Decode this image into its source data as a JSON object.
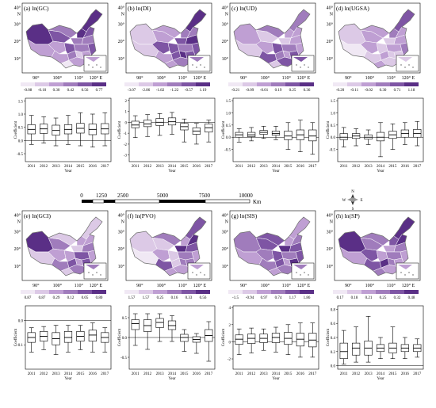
{
  "figure": {
    "panels": [
      {
        "id": "a",
        "title": "(a) ln(GC)",
        "lat_labels": [
          "40°",
          "30°",
          "20°",
          "10°"
        ],
        "north_label": "N",
        "lon_labels": [
          "90°",
          "100°",
          "110°",
          "120° E"
        ],
        "legend": [
          "-0.08",
          "-0.10",
          "0.30",
          "0.42",
          "0.56",
          "0.77"
        ],
        "palette": [
          "#f0e8f4",
          "#dcc9e6",
          "#bf9fd3",
          "#a07cbc",
          "#7e55a4",
          "#5a2f86"
        ],
        "chart_data": {
          "type": "box",
          "categories": [
            "2011",
            "2012",
            "2013",
            "2014",
            "2015",
            "2016",
            "2017"
          ],
          "xlabel": "Year",
          "ylabel": "Coefficient",
          "yticks": [
            "1.5",
            "1.0",
            "0.5",
            "0.0",
            "-0.5"
          ],
          "ylim": [
            -0.8,
            1.6
          ],
          "boxes": [
            {
              "min": -0.15,
              "q1": 0.25,
              "median": 0.42,
              "q3": 0.6,
              "max": 0.95
            },
            {
              "min": -0.1,
              "q1": 0.27,
              "median": 0.44,
              "q3": 0.62,
              "max": 0.9
            },
            {
              "min": -0.2,
              "q1": 0.2,
              "median": 0.38,
              "q3": 0.58,
              "max": 0.85
            },
            {
              "min": -0.15,
              "q1": 0.25,
              "median": 0.42,
              "q3": 0.6,
              "max": 0.95
            },
            {
              "min": -0.2,
              "q1": 0.28,
              "median": 0.46,
              "q3": 0.65,
              "max": 1.05
            },
            {
              "min": -0.25,
              "q1": 0.22,
              "median": 0.42,
              "q3": 0.62,
              "max": 1.0
            },
            {
              "min": -0.2,
              "q1": 0.25,
              "median": 0.44,
              "q3": 0.64,
              "max": 1.05
            }
          ]
        }
      },
      {
        "id": "b",
        "title": "(b) ln(DI)",
        "lat_labels": [
          "40°",
          "30°",
          "20°",
          "10°"
        ],
        "north_label": "N",
        "lon_labels": [
          "90°",
          "100°",
          "110°",
          "120° E"
        ],
        "legend": [
          "-3.07",
          "-2.86",
          "-1.82",
          "-1.22",
          "-0.57",
          "1.19"
        ],
        "palette": [
          "#f0e8f4",
          "#dcc9e6",
          "#bf9fd3",
          "#a07cbc",
          "#7e55a4",
          "#5a2f86"
        ],
        "chart_data": {
          "type": "box",
          "categories": [
            "2011",
            "2012",
            "2013",
            "2014",
            "2015",
            "2016",
            "2017"
          ],
          "xlabel": "Year",
          "ylabel": "Coefficient",
          "yticks": [
            "2",
            "1",
            "0",
            "-1",
            "-2",
            "-3"
          ],
          "ylim": [
            -3.6,
            2.2
          ],
          "boxes": [
            {
              "min": -1.4,
              "q1": -0.5,
              "median": -0.25,
              "q3": 0.1,
              "max": 0.6
            },
            {
              "min": -1.3,
              "q1": -0.4,
              "median": -0.15,
              "q3": 0.2,
              "max": 0.7
            },
            {
              "min": -1.2,
              "q1": -0.3,
              "median": 0.0,
              "q3": 0.35,
              "max": 0.8
            },
            {
              "min": -1.1,
              "q1": -0.25,
              "median": 0.05,
              "q3": 0.4,
              "max": 0.9
            },
            {
              "min": -1.8,
              "q1": -0.7,
              "median": -0.4,
              "q3": -0.1,
              "max": 0.3
            },
            {
              "min": -2.0,
              "q1": -1.1,
              "median": -0.8,
              "q3": -0.5,
              "max": -0.1
            },
            {
              "min": -1.8,
              "q1": -0.9,
              "median": -0.5,
              "q3": -0.15,
              "max": 0.2
            }
          ]
        }
      },
      {
        "id": "c",
        "title": "(c) ln(UD)",
        "lat_labels": [
          "40°",
          "30°",
          "20°",
          "10°"
        ],
        "north_label": "N",
        "lon_labels": [
          "90°",
          "100°",
          "110°",
          "120° E"
        ],
        "legend": [
          "-0.21",
          "-0.09",
          "-0.01",
          "0.19",
          "0.25",
          "0.36"
        ],
        "palette": [
          "#f0e8f4",
          "#dcc9e6",
          "#bf9fd3",
          "#a07cbc",
          "#7e55a4",
          "#5a2f86"
        ],
        "chart_data": {
          "type": "box",
          "categories": [
            "2011",
            "2012",
            "2013",
            "2014",
            "2015",
            "2016",
            "2017"
          ],
          "xlabel": "Year",
          "ylabel": "Coefficient",
          "yticks": [
            "1.5",
            "1.0",
            "0.5",
            "0.0",
            "-0.5"
          ],
          "ylim": [
            -1.0,
            1.6
          ],
          "boxes": [
            {
              "min": -0.2,
              "q1": 0.0,
              "median": 0.1,
              "q3": 0.2,
              "max": 0.35
            },
            {
              "min": -0.15,
              "q1": 0.02,
              "median": 0.1,
              "q3": 0.2,
              "max": 0.4
            },
            {
              "min": -0.05,
              "q1": 0.12,
              "median": 0.2,
              "q3": 0.28,
              "max": 0.45
            },
            {
              "min": -0.1,
              "q1": 0.08,
              "median": 0.15,
              "q3": 0.25,
              "max": 0.45
            },
            {
              "min": -0.5,
              "q1": -0.1,
              "median": 0.05,
              "q3": 0.25,
              "max": 0.6
            },
            {
              "min": -0.6,
              "q1": -0.1,
              "median": 0.1,
              "q3": 0.3,
              "max": 0.7
            },
            {
              "min": -0.7,
              "q1": -0.15,
              "median": 0.05,
              "q3": 0.3,
              "max": 0.6
            }
          ]
        }
      },
      {
        "id": "d",
        "title": "(d) ln(UGSA)",
        "lat_labels": [
          "40°",
          "30°",
          "20°",
          "10°"
        ],
        "north_label": "N",
        "lon_labels": [
          "90°",
          "100°",
          "110°",
          "120° E"
        ],
        "legend": [
          "-0.20",
          "-0.11",
          "-0.02",
          "0.30",
          "0.71",
          "1.18"
        ],
        "palette": [
          "#f0e8f4",
          "#dcc9e6",
          "#bf9fd3",
          "#a07cbc",
          "#7e55a4",
          "#5a2f86"
        ],
        "chart_data": {
          "type": "box",
          "categories": [
            "2011",
            "2012",
            "2013",
            "2014",
            "2015",
            "2016",
            "2017"
          ],
          "xlabel": "Year",
          "ylabel": "Coefficient",
          "yticks": [
            "1.5",
            "1.0",
            "0.5",
            "0.0",
            "-0.5"
          ],
          "ylim": [
            -1.0,
            1.6
          ],
          "boxes": [
            {
              "min": -0.4,
              "q1": -0.1,
              "median": 0.0,
              "q3": 0.15,
              "max": 0.4
            },
            {
              "min": -0.35,
              "q1": -0.05,
              "median": 0.05,
              "q3": 0.15,
              "max": 0.35
            },
            {
              "min": -0.3,
              "q1": -0.08,
              "median": 0.0,
              "q3": 0.1,
              "max": 0.3
            },
            {
              "min": -0.8,
              "q1": -0.15,
              "median": 0.0,
              "q3": 0.2,
              "max": 0.6
            },
            {
              "min": -0.5,
              "q1": -0.05,
              "median": 0.1,
              "q3": 0.25,
              "max": 0.55
            },
            {
              "min": -0.3,
              "q1": 0.0,
              "median": 0.15,
              "q3": 0.3,
              "max": 0.6
            },
            {
              "min": -0.35,
              "q1": 0.0,
              "median": 0.15,
              "q3": 0.32,
              "max": 0.65
            }
          ]
        }
      },
      {
        "id": "e",
        "title": "(e) ln(GCI)",
        "lat_labels": [
          "40°",
          "30°",
          "20°",
          "10°"
        ],
        "north_label": "N",
        "lon_labels": [
          "90°",
          "100°",
          "110°",
          "120° E"
        ],
        "legend": [
          "0.87",
          "0.87",
          "0.29",
          "0.12",
          "0.05",
          "0.80"
        ],
        "palette": [
          "#f0e8f4",
          "#dcc9e6",
          "#bf9fd3",
          "#a07cbc",
          "#7e55a4",
          "#5a2f86"
        ],
        "chart_data": {
          "type": "box",
          "categories": [
            "2011",
            "2012",
            "2013",
            "2014",
            "2015",
            "2016",
            "2017"
          ],
          "xlabel": "Year",
          "ylabel": "Coefficient",
          "yticks": [
            "0.0",
            "-0.1"
          ],
          "ylim": [
            -0.2,
            0.06
          ],
          "boxes": [
            {
              "min": -0.13,
              "q1": -0.09,
              "median": -0.07,
              "q3": -0.05,
              "max": -0.03
            },
            {
              "min": -0.12,
              "q1": -0.085,
              "median": -0.065,
              "q3": -0.045,
              "max": -0.025
            },
            {
              "min": -0.14,
              "q1": -0.1,
              "median": -0.075,
              "q3": -0.05,
              "max": -0.02
            },
            {
              "min": -0.13,
              "q1": -0.09,
              "median": -0.07,
              "q3": -0.045,
              "max": -0.02
            },
            {
              "min": -0.12,
              "q1": -0.085,
              "median": -0.065,
              "q3": -0.045,
              "max": -0.02
            },
            {
              "min": -0.13,
              "q1": -0.085,
              "median": -0.06,
              "q3": -0.04,
              "max": -0.01
            },
            {
              "min": -0.13,
              "q1": -0.09,
              "median": -0.07,
              "q3": -0.05,
              "max": -0.03
            }
          ]
        }
      },
      {
        "id": "f",
        "title": "(f) ln(PVO)",
        "lat_labels": [
          "40°",
          "30°",
          "20°",
          "10°"
        ],
        "north_label": "N",
        "lon_labels": [
          "90°",
          "100°",
          "110°",
          "120° E"
        ],
        "legend": [
          "1.57",
          "1.57",
          "0.25",
          "0.16",
          "0.33",
          "0.56"
        ],
        "palette": [
          "#f0e8f4",
          "#dcc9e6",
          "#bf9fd3",
          "#a07cbc",
          "#7e55a4",
          "#5a2f86"
        ],
        "chart_data": {
          "type": "box",
          "categories": [
            "2011",
            "2012",
            "2013",
            "2014",
            "2015",
            "2016",
            "2017"
          ],
          "xlabel": "Year",
          "ylabel": "Coefficient",
          "yticks": [
            "0.5",
            "0.0",
            "-0.5"
          ],
          "ylim": [
            -0.8,
            0.8
          ],
          "boxes": [
            {
              "min": -0.2,
              "q1": 0.2,
              "median": 0.35,
              "q3": 0.45,
              "max": 0.6
            },
            {
              "min": -0.3,
              "q1": 0.15,
              "median": 0.3,
              "q3": 0.45,
              "max": 0.6
            },
            {
              "min": -0.1,
              "q1": 0.25,
              "median": 0.38,
              "q3": 0.48,
              "max": 0.6
            },
            {
              "min": -0.1,
              "q1": 0.2,
              "median": 0.3,
              "q3": 0.42,
              "max": 0.55
            },
            {
              "min": -0.35,
              "q1": -0.1,
              "median": 0.0,
              "q3": 0.08,
              "max": 0.2
            },
            {
              "min": -0.4,
              "q1": -0.12,
              "median": -0.05,
              "q3": 0.02,
              "max": 0.1
            },
            {
              "min": -0.6,
              "q1": -0.1,
              "median": 0.05,
              "q3": 0.2,
              "max": 0.4
            }
          ]
        }
      },
      {
        "id": "g",
        "title": "(g) ln(SIS)",
        "lat_labels": [
          "40°",
          "30°",
          "20°",
          "10°"
        ],
        "north_label": "N",
        "lon_labels": [
          "90°",
          "100°",
          "110°",
          "120° E"
        ],
        "legend": [
          "-1.5",
          "-0.94",
          "0.97",
          "0.74",
          "1.17",
          "1.86"
        ],
        "palette": [
          "#f0e8f4",
          "#dcc9e6",
          "#bf9fd3",
          "#a07cbc",
          "#7e55a4",
          "#5a2f86"
        ],
        "chart_data": {
          "type": "box",
          "categories": [
            "2011",
            "2012",
            "2013",
            "2014",
            "2015",
            "2016",
            "2017"
          ],
          "xlabel": "Year",
          "ylabel": "Coefficient",
          "yticks": [
            "4",
            "2",
            "0",
            "-2"
          ],
          "ylim": [
            -3.2,
            4.2
          ],
          "boxes": [
            {
              "min": -1.5,
              "q1": -0.3,
              "median": 0.3,
              "q3": 0.8,
              "max": 1.5
            },
            {
              "min": -1.3,
              "q1": -0.2,
              "median": 0.4,
              "q3": 0.9,
              "max": 1.6
            },
            {
              "min": -1.0,
              "q1": -0.1,
              "median": 0.4,
              "q3": 0.9,
              "max": 1.5
            },
            {
              "min": -1.2,
              "q1": -0.1,
              "median": 0.5,
              "q3": 1.0,
              "max": 1.7
            },
            {
              "min": -1.5,
              "q1": -0.3,
              "median": 0.4,
              "q3": 1.1,
              "max": 2.0
            },
            {
              "min": -1.8,
              "q1": -0.5,
              "median": 0.3,
              "q3": 1.0,
              "max": 2.2
            },
            {
              "min": -1.8,
              "q1": -0.6,
              "median": 0.2,
              "q3": 1.0,
              "max": 2.2
            }
          ]
        }
      },
      {
        "id": "h",
        "title": "(h) ln(SP)",
        "lat_labels": [
          "40°",
          "30°",
          "20°",
          "10°"
        ],
        "north_label": "N",
        "lon_labels": [
          "90°",
          "100°",
          "110°",
          "120° E"
        ],
        "legend": [
          "0.17",
          "0.18",
          "0.21",
          "0.25",
          "0.32",
          "0.48"
        ],
        "palette": [
          "#f0e8f4",
          "#dcc9e6",
          "#bf9fd3",
          "#a07cbc",
          "#7e55a4",
          "#5a2f86"
        ],
        "chart_data": {
          "type": "box",
          "categories": [
            "2011",
            "2012",
            "2013",
            "2014",
            "2015",
            "2016",
            "2017"
          ],
          "xlabel": "Year",
          "ylabel": "Coefficient",
          "yticks": [
            "0.8",
            "0.6",
            "0.4",
            "0.2",
            "0.0"
          ],
          "ylim": [
            -0.05,
            0.85
          ],
          "boxes": [
            {
              "min": 0.02,
              "q1": 0.1,
              "median": 0.2,
              "q3": 0.32,
              "max": 0.5
            },
            {
              "min": 0.05,
              "q1": 0.15,
              "median": 0.25,
              "q3": 0.32,
              "max": 0.55
            },
            {
              "min": 0.05,
              "q1": 0.15,
              "median": 0.25,
              "q3": 0.35,
              "max": 0.7
            },
            {
              "min": 0.1,
              "q1": 0.2,
              "median": 0.25,
              "q3": 0.3,
              "max": 0.4
            },
            {
              "min": 0.1,
              "q1": 0.18,
              "median": 0.25,
              "q3": 0.32,
              "max": 0.55
            },
            {
              "min": 0.1,
              "q1": 0.2,
              "median": 0.25,
              "q3": 0.3,
              "max": 0.4
            },
            {
              "min": 0.12,
              "q1": 0.2,
              "median": 0.25,
              "q3": 0.3,
              "max": 0.38
            }
          ]
        }
      }
    ],
    "scale_bar": {
      "labels": [
        "0",
        "1250",
        "2500",
        "5000",
        "7500",
        "10000"
      ],
      "unit": "Km"
    },
    "compass": {
      "n": "N",
      "s": "S",
      "w": "W",
      "e": "E"
    }
  }
}
